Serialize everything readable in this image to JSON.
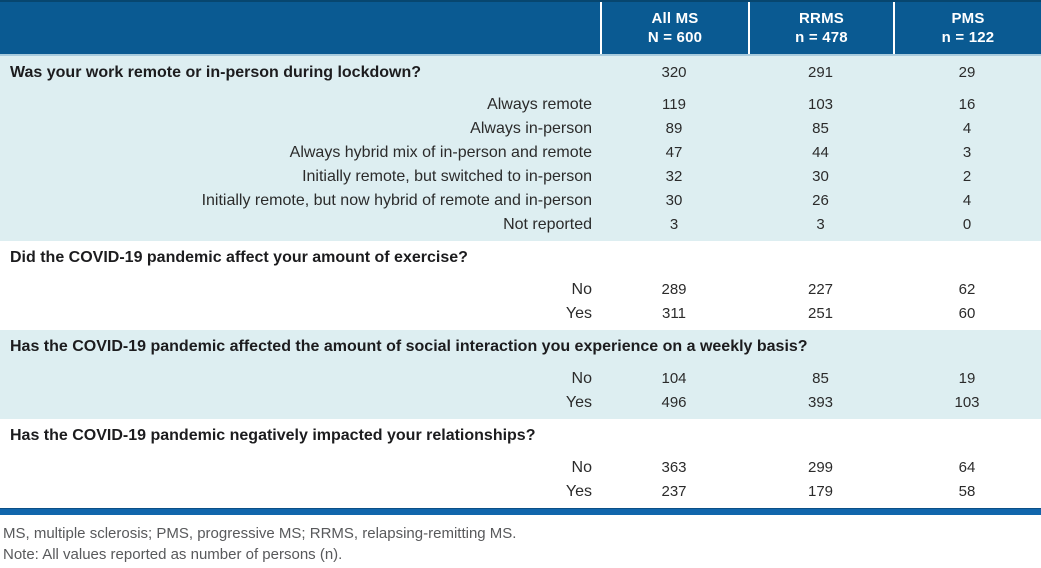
{
  "table": {
    "columns": [
      {
        "line1": "All MS",
        "line2": "N = 600"
      },
      {
        "line1": "RRMS",
        "line2": "n = 478"
      },
      {
        "line1": "PMS",
        "line2": "n = 122"
      }
    ],
    "sections": [
      {
        "question": "Was your work remote or in-person during lockdown?",
        "question_values": [
          "320",
          "291",
          "29"
        ],
        "rows": [
          {
            "label": "Always remote",
            "values": [
              "119",
              "103",
              "16"
            ]
          },
          {
            "label": "Always in-person",
            "values": [
              "89",
              "85",
              "4"
            ]
          },
          {
            "label": "Always hybrid mix of in-person and remote",
            "values": [
              "47",
              "44",
              "3"
            ]
          },
          {
            "label": "Initially remote, but switched to in-person",
            "values": [
              "32",
              "30",
              "2"
            ]
          },
          {
            "label": "Initially remote, but now hybrid of remote and in-person",
            "values": [
              "30",
              "26",
              "4"
            ]
          },
          {
            "label": "Not reported",
            "values": [
              "3",
              "3",
              "0"
            ]
          }
        ]
      },
      {
        "question": "Did the COVID-19 pandemic affect your amount of exercise?",
        "rows": [
          {
            "label": "No",
            "values": [
              "289",
              "227",
              "62"
            ]
          },
          {
            "label": "Yes",
            "values": [
              "311",
              "251",
              "60"
            ]
          }
        ]
      },
      {
        "question": "Has the COVID-19 pandemic affected the amount of social interaction you experience on a weekly basis?",
        "rows": [
          {
            "label": "No",
            "values": [
              "104",
              "85",
              "19"
            ]
          },
          {
            "label": "Yes",
            "values": [
              "496",
              "393",
              "103"
            ]
          }
        ]
      },
      {
        "question": "Has the COVID-19 pandemic negatively impacted your relationships?",
        "rows": [
          {
            "label": "No",
            "values": [
              "363",
              "299",
              "64"
            ]
          },
          {
            "label": "Yes",
            "values": [
              "237",
              "179",
              "58"
            ]
          }
        ]
      }
    ]
  },
  "footnotes": {
    "abbreviations": "MS, multiple sclerosis; PMS, progressive MS; RRMS, relapsing-remitting MS.",
    "note": "Note: All values reported as number of persons (n)."
  },
  "colors": {
    "header_blue": "#0A5A92",
    "light_blue": "#DDEEF1",
    "rule_blue": "#1166AC",
    "footnote_gray": "#58595B"
  }
}
